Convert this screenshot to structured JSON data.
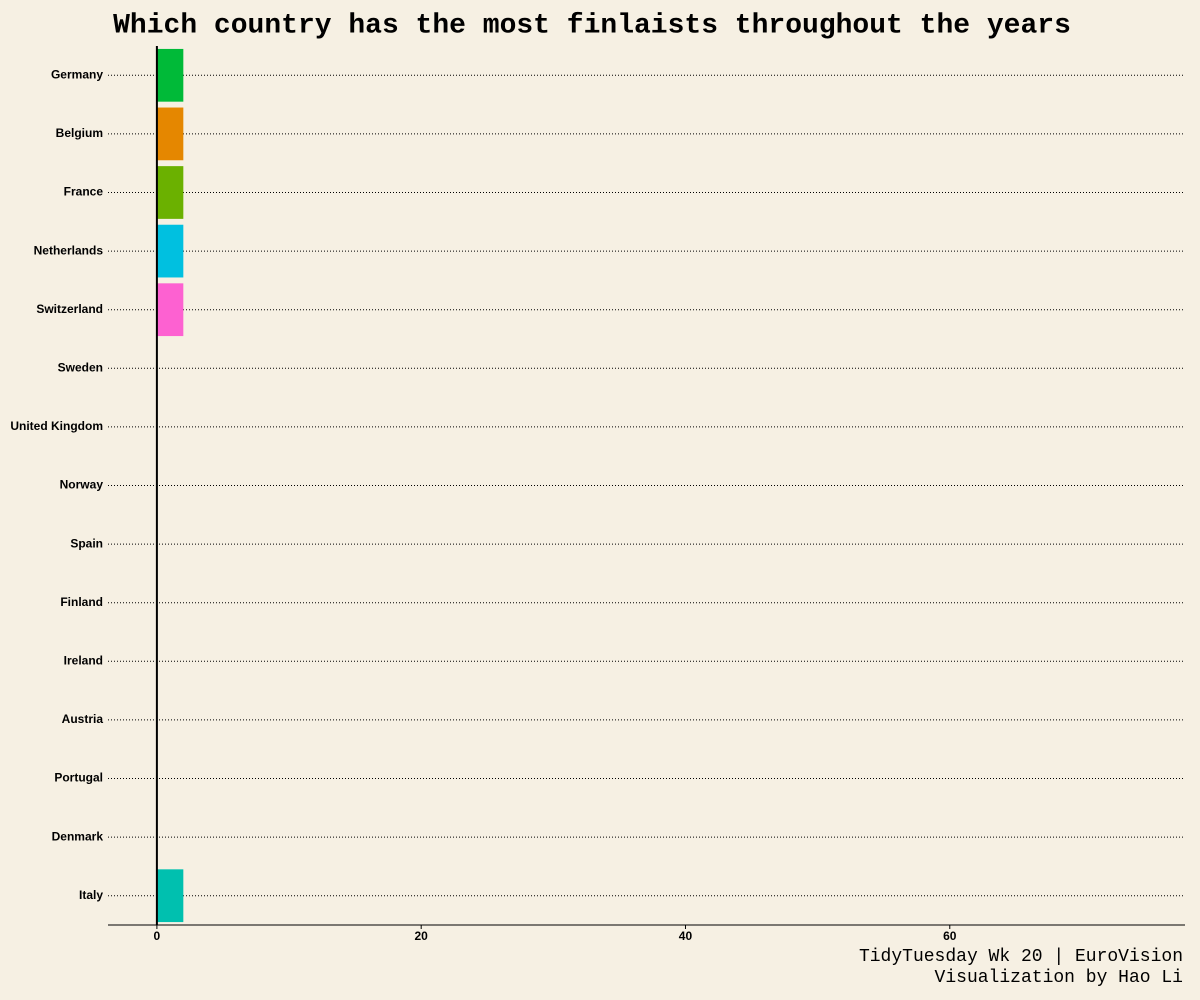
{
  "chart_data": {
    "type": "hbar",
    "title": "Which country has the most finlaists throughout the years",
    "caption": [
      "TidyTuesday Wk 20 | EuroVision",
      "Visualization by Hao Li"
    ],
    "categories": [
      "Germany",
      "Belgium",
      "France",
      "Netherlands",
      "Switzerland",
      "Sweden",
      "United Kingdom",
      "Norway",
      "Spain",
      "Finland",
      "Ireland",
      "Austria",
      "Portugal",
      "Denmark",
      "Italy"
    ],
    "values": [
      2,
      2,
      2,
      2,
      2,
      0,
      0,
      0,
      0,
      0,
      0,
      0,
      0,
      0,
      2
    ],
    "colors": [
      "#00ba38",
      "#e58700",
      "#6bb100",
      "#00c0e0",
      "#fd61d1",
      null,
      null,
      null,
      null,
      null,
      null,
      null,
      null,
      null,
      "#00c0af"
    ],
    "xlim": [
      -3.7,
      77.8
    ],
    "xticks": [
      0,
      20,
      40,
      60
    ],
    "grid": true
  }
}
